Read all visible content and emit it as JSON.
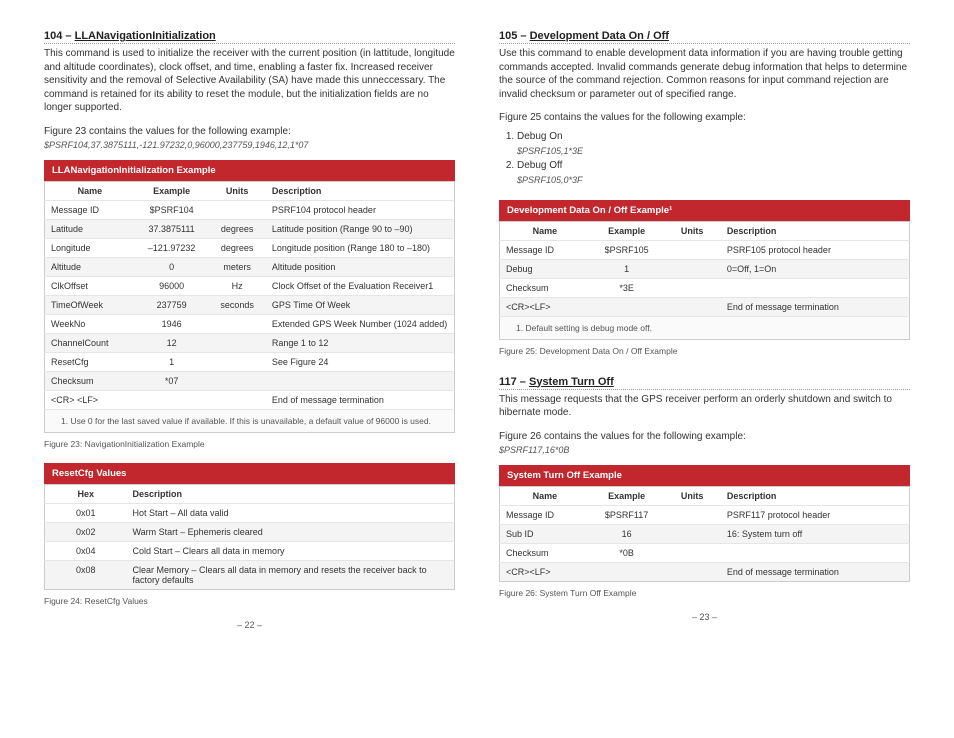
{
  "left": {
    "s104": {
      "heading_pre": "104 – ",
      "heading": "LLANavigationInitialization",
      "body": "This command is used to initialize the receiver with the current position (in lattitude, longitude and altitude coordinates), clock offset, and time, enabling a faster fix. Increased receiver sensitivity and the removal of Selective Availability (SA) have made this unneccessary. The command is retained for its ability to reset the module, but the initialization fields are no longer supported.",
      "fig_intro": "Figure 23 contains the values for the following example:",
      "example": "$PSRF104,37.3875111,-121.97232,0,96000,237759,1946,12,1*07",
      "table_caption": "LLANavigationInitialization Example",
      "cols": {
        "name": "Name",
        "example": "Example",
        "units": "Units",
        "desc": "Description"
      },
      "rows": [
        {
          "name": "Message ID",
          "example": "$PSRF104",
          "units": "",
          "desc": "PSRF104 protocol header"
        },
        {
          "name": "Latitude",
          "example": "37.3875111",
          "units": "degrees",
          "desc": "Latitude position (Range 90 to –90)"
        },
        {
          "name": "Longitude",
          "example": "–121.97232",
          "units": "degrees",
          "desc": "Longitude position (Range 180 to –180)"
        },
        {
          "name": "Altitude",
          "example": "0",
          "units": "meters",
          "desc": "Altitude position"
        },
        {
          "name": "ClkOffset",
          "example": "96000",
          "units": "Hz",
          "desc": "Clock Offset of the Evaluation Receiver1"
        },
        {
          "name": "TimeOfWeek",
          "example": "237759",
          "units": "seconds",
          "desc": "GPS Time Of Week"
        },
        {
          "name": "WeekNo",
          "example": "1946",
          "units": "",
          "desc": "Extended GPS Week Number (1024 added)"
        },
        {
          "name": "ChannelCount",
          "example": "12",
          "units": "",
          "desc": "Range 1 to 12"
        },
        {
          "name": "ResetCfg",
          "example": "1",
          "units": "",
          "desc": "See Figure 24"
        },
        {
          "name": "Checksum",
          "example": "*07",
          "units": "",
          "desc": ""
        },
        {
          "name": "<CR> <LF>",
          "example": "",
          "units": "",
          "desc": "End of message termination"
        }
      ],
      "footnote": "1.   Use 0 for the last saved value if available. If this is unavailable, a default value of 96000 is used.",
      "figcap": "Figure 23: NavigationInitialization Example",
      "reset_caption": "ResetCfg Values",
      "reset_cols": {
        "hex": "Hex",
        "desc": "Description"
      },
      "reset_rows": [
        {
          "hex": "0x01",
          "desc": "Hot Start – All data valid"
        },
        {
          "hex": "0x02",
          "desc": "Warm Start – Ephemeris cleared"
        },
        {
          "hex": "0x04",
          "desc": "Cold Start – Clears all data in memory"
        },
        {
          "hex": "0x08",
          "desc": "Clear Memory – Clears all data in memory and resets the receiver back to factory defaults"
        }
      ],
      "reset_figcap": "Figure 24: ResetCfg Values",
      "pagenum": "– 22 –"
    }
  },
  "right": {
    "s105": {
      "heading_pre": "105 – ",
      "heading": "Development Data On / Off",
      "body": "Use this command to enable development data information if you are having trouble getting commands accepted. Invalid commands generate debug information that helps to determine the source of the command rejection. Common reasons for input command rejection are invalid checksum or parameter out of specified range.",
      "fig_intro": "Figure 25 contains the values for the following example:",
      "li1": "Debug On",
      "li1s": "$PSRF105,1*3E",
      "li2": "Debug Off",
      "li2s": "$PSRF105,0*3F",
      "table_caption": "Development Data On / Off Example¹",
      "cols": {
        "name": "Name",
        "example": "Example",
        "units": "Units",
        "desc": "Description"
      },
      "rows": [
        {
          "name": "Message ID",
          "example": "$PSRF105",
          "units": "",
          "desc": "PSRF105 protocol header"
        },
        {
          "name": "Debug",
          "example": "1",
          "units": "",
          "desc": "0=Off, 1=On"
        },
        {
          "name": "Checksum",
          "example": "*3E",
          "units": "",
          "desc": ""
        },
        {
          "name": "<CR><LF>",
          "example": "",
          "units": "",
          "desc": "End of message termination"
        }
      ],
      "footnote": "1.   Default setting is debug mode off.",
      "figcap": "Figure 25: Development Data On / Off Example"
    },
    "s117": {
      "heading_pre": "117 – ",
      "heading": "System Turn Off",
      "body": "This message requests that the GPS receiver perform an orderly shutdown and switch to hibernate mode.",
      "fig_intro": "Figure 26 contains the values for the following example:",
      "example": "$PSRF117,16*0B",
      "table_caption": "System Turn Off Example",
      "cols": {
        "name": "Name",
        "example": "Example",
        "units": "Units",
        "desc": "Description"
      },
      "rows": [
        {
          "name": "Message ID",
          "example": "$PSRF117",
          "units": "",
          "desc": "PSRF117 protocol header"
        },
        {
          "name": "Sub ID",
          "example": "16",
          "units": "",
          "desc": "16: System turn off"
        },
        {
          "name": "Checksum",
          "example": "*0B",
          "units": "",
          "desc": ""
        },
        {
          "name": "<CR><LF>",
          "example": "",
          "units": "",
          "desc": "End of message termination"
        }
      ],
      "figcap": "Figure 26: System Turn Off Example",
      "pagenum": "– 23 –"
    }
  }
}
